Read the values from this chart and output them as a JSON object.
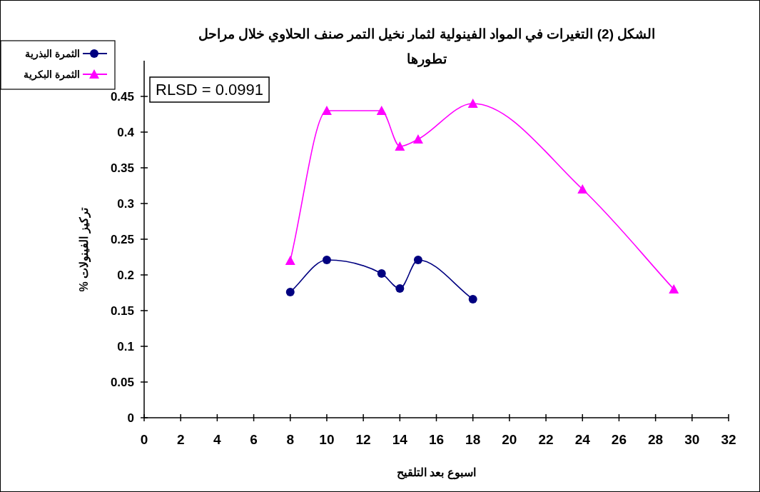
{
  "chart_data": {
    "type": "line",
    "title": "الشكل (2) التغيرات في المواد الفينولية لثمار نخيل التمر صنف الحلاوي خلال مراحل تطورها",
    "xlabel": "اسبوع بعد التلقيح",
    "ylabel": "تركيز الفينولات %",
    "annotations": [
      "RLSD = 0.0991"
    ],
    "series": [
      {
        "name": "الثمرة البذرية",
        "color": "#000080",
        "marker": "circle",
        "x": [
          8,
          10,
          13,
          14,
          15,
          18
        ],
        "values": [
          0.176,
          0.221,
          0.202,
          0.181,
          0.221,
          0.166
        ]
      },
      {
        "name": "الثمرة البكرية",
        "color": "#ff00ff",
        "marker": "triangle",
        "x": [
          8,
          10,
          13,
          14,
          15,
          18,
          24,
          29
        ],
        "values": [
          0.22,
          0.43,
          0.43,
          0.38,
          0.39,
          0.44,
          0.32,
          0.18
        ]
      }
    ],
    "xlim": [
      0,
      32
    ],
    "xticks": [
      0,
      2,
      4,
      6,
      8,
      10,
      12,
      14,
      16,
      18,
      20,
      22,
      24,
      26,
      28,
      30,
      32
    ],
    "ylim": [
      0,
      0.5
    ],
    "yticks": [
      0,
      0.05,
      0.1,
      0.15,
      0.2,
      0.25,
      0.3,
      0.35,
      0.4,
      0.45
    ],
    "grid": false,
    "legend": "top left",
    "line_style": "solid"
  }
}
